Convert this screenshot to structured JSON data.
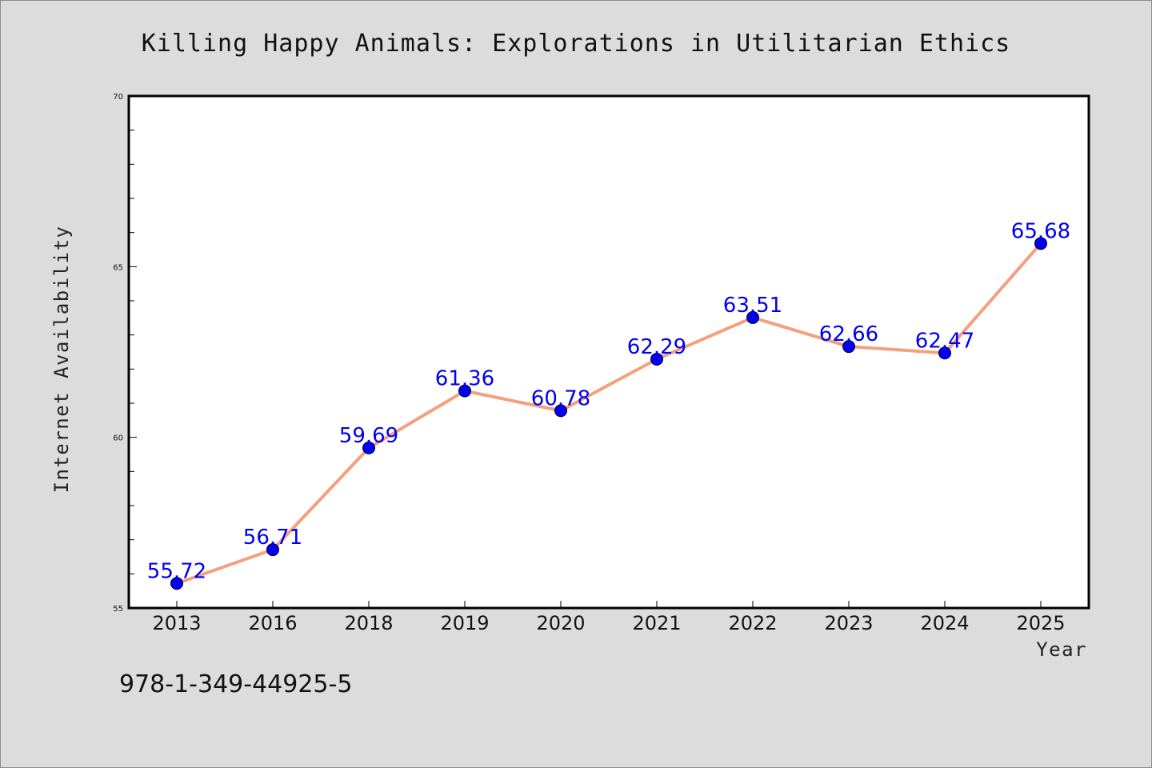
{
  "colors": {
    "background": "#dcdcdc",
    "plot_background": "#ffffff",
    "line": "#f4a07e",
    "marker": "#0000ee",
    "data_label": "#0000ee",
    "axis": "#000000"
  },
  "chart_data": {
    "type": "line",
    "title": "Killing Happy Animals: Explorations in Utilitarian Ethics",
    "xlabel": "Year",
    "ylabel": "Internet Availability",
    "categories": [
      "2013",
      "2016",
      "2018",
      "2019",
      "2020",
      "2021",
      "2022",
      "2023",
      "2024",
      "2025"
    ],
    "series": [
      {
        "values": [
          55.72,
          56.71,
          59.69,
          61.36,
          60.78,
          62.29,
          63.51,
          62.66,
          62.47,
          65.68
        ],
        "labels": [
          "55.72",
          "56.71",
          "59.69",
          "61.36",
          "60.78",
          "62.29",
          "63.51",
          "62.66",
          "62.47",
          "65.68"
        ]
      }
    ],
    "ylim": [
      55,
      70
    ],
    "yticks": [
      55,
      60,
      65,
      70
    ],
    "ytick_labels": [
      "55",
      "60",
      "65",
      "70"
    ],
    "y_minor_step": 1,
    "grid": false,
    "legend": "none"
  },
  "footer": {
    "isbn": "978-1-349-44925-5"
  }
}
